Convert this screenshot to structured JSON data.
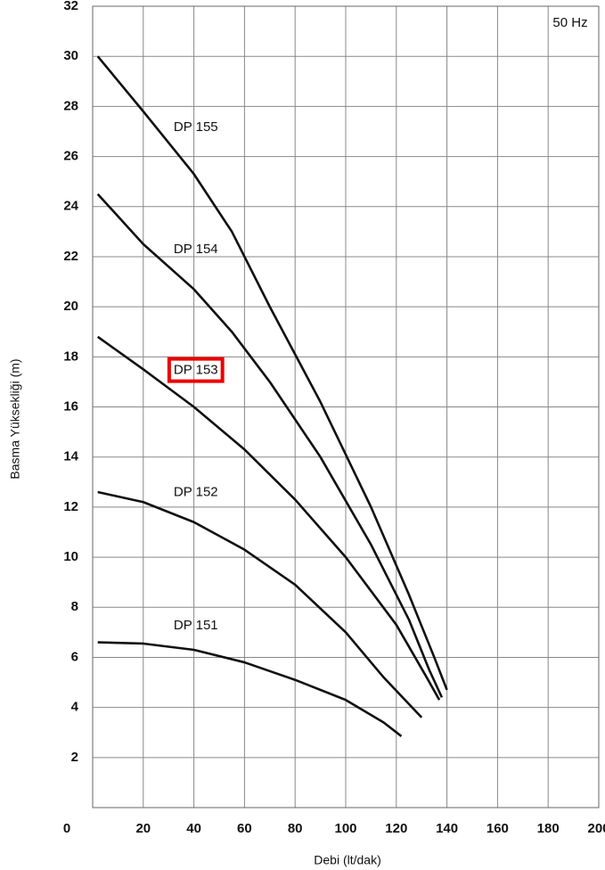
{
  "chart_data": {
    "type": "line",
    "xlabel": "Debi (lt/dak)",
    "ylabel": "Basma Yüksekliği (m)",
    "annotation": "50 Hz",
    "xlim": [
      0,
      200
    ],
    "xticks": [
      0,
      20,
      40,
      60,
      80,
      100,
      120,
      140,
      160,
      180,
      200
    ],
    "ylim": [
      0,
      32
    ],
    "yticks": [
      2,
      4,
      6,
      8,
      10,
      12,
      14,
      16,
      18,
      20,
      22,
      24,
      26,
      28,
      30,
      32
    ],
    "grid": true,
    "series": [
      {
        "name": "DP 155",
        "color": "#111111",
        "x": [
          2,
          20,
          40,
          55,
          70,
          90,
          110,
          125,
          135,
          140
        ],
        "values": [
          30,
          27.8,
          25.3,
          23,
          20,
          16.2,
          12,
          8.5,
          6,
          4.7
        ]
      },
      {
        "name": "DP 154",
        "color": "#111111",
        "x": [
          2,
          20,
          40,
          55,
          70,
          90,
          110,
          125,
          133,
          138
        ],
        "values": [
          24.5,
          22.5,
          20.7,
          19,
          17,
          14,
          10.5,
          7.5,
          5.5,
          4.4
        ]
      },
      {
        "name": "DP 153",
        "color": "#111111",
        "highlight": true,
        "x": [
          2,
          20,
          40,
          60,
          80,
          100,
          120,
          132,
          137
        ],
        "values": [
          18.8,
          17.5,
          16,
          14.3,
          12.3,
          10,
          7.3,
          5.2,
          4.3
        ]
      },
      {
        "name": "DP 152",
        "color": "#111111",
        "x": [
          2,
          20,
          40,
          60,
          80,
          100,
          115,
          130
        ],
        "values": [
          12.6,
          12.2,
          11.4,
          10.3,
          8.9,
          7,
          5.2,
          3.6
        ]
      },
      {
        "name": "DP 151",
        "color": "#111111",
        "x": [
          2,
          20,
          40,
          60,
          80,
          100,
          115,
          122
        ],
        "values": [
          6.6,
          6.55,
          6.3,
          5.8,
          5.1,
          4.3,
          3.4,
          2.85
        ]
      }
    ]
  }
}
